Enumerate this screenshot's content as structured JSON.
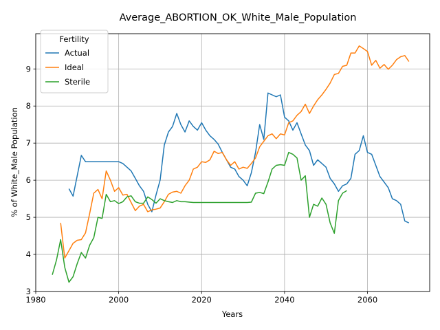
{
  "chart_data": {
    "type": "line",
    "title": "Average_ABORTION_OK_White_Male_Population",
    "xlabel": "Years",
    "ylabel": "% of White_Male Population",
    "xlim": [
      1980,
      2075
    ],
    "ylim": [
      3.0,
      9.95
    ],
    "x_ticks": [
      1980,
      2000,
      2020,
      2040,
      2060
    ],
    "y_ticks": [
      3,
      4,
      5,
      6,
      7,
      8,
      9
    ],
    "grid": true,
    "legend": {
      "title": "Fertility",
      "placement": "top-left"
    },
    "series": [
      {
        "name": "Actual",
        "color": "#1f77b4",
        "x": [
          1988,
          1989,
          1991,
          1992,
          1994,
          1996,
          1998,
          2000,
          2001,
          2003,
          2004,
          2005,
          2006,
          2007,
          2008,
          2009,
          2010,
          2011,
          2012,
          2013,
          2014,
          2015,
          2016,
          2017,
          2018,
          2019,
          2020,
          2021,
          2022,
          2023,
          2024,
          2025,
          2026,
          2027,
          2028,
          2029,
          2030,
          2031,
          2032,
          2033,
          2034,
          2035,
          2036,
          2037,
          2038,
          2039,
          2040,
          2041,
          2042,
          2043,
          2044,
          2045,
          2046,
          2047,
          2048,
          2049,
          2050,
          2051,
          2052,
          2053,
          2054,
          2055,
          2056,
          2057,
          2058,
          2059,
          2060,
          2061,
          2062,
          2063,
          2064,
          2065,
          2066,
          2067,
          2068,
          2069,
          2070
        ],
        "values": [
          5.77,
          5.57,
          6.67,
          6.5,
          6.5,
          6.5,
          6.5,
          6.5,
          6.45,
          6.25,
          6.05,
          5.85,
          5.7,
          5.35,
          5.15,
          5.6,
          6.0,
          6.95,
          7.3,
          7.45,
          7.8,
          7.5,
          7.3,
          7.6,
          7.45,
          7.35,
          7.55,
          7.35,
          7.2,
          7.1,
          6.97,
          6.75,
          6.55,
          6.35,
          6.3,
          6.1,
          6.0,
          5.85,
          6.2,
          6.75,
          7.5,
          7.1,
          8.35,
          8.3,
          8.25,
          8.3,
          7.7,
          7.6,
          7.35,
          7.55,
          7.25,
          6.95,
          6.8,
          6.4,
          6.55,
          6.45,
          6.35,
          6.05,
          5.9,
          5.7,
          5.85,
          5.9,
          6.05,
          6.7,
          6.8,
          7.2,
          6.75,
          6.7,
          6.4,
          6.1,
          5.95,
          5.8,
          5.5,
          5.45,
          5.35,
          4.9,
          4.85
        ]
      },
      {
        "name": "Ideal",
        "color": "#ff7f0e",
        "x": [
          1986,
          1987,
          1988,
          1989,
          1990,
          1991,
          1992,
          1993,
          1994,
          1995,
          1996,
          1997,
          1998,
          1999,
          2000,
          2001,
          2002,
          2003,
          2004,
          2005,
          2006,
          2007,
          2008,
          2009,
          2010,
          2011,
          2012,
          2013,
          2014,
          2015,
          2016,
          2017,
          2018,
          2019,
          2020,
          2021,
          2022,
          2023,
          2024,
          2025,
          2026,
          2027,
          2028,
          2029,
          2030,
          2031,
          2032,
          2033,
          2034,
          2035,
          2036,
          2037,
          2038,
          2039,
          2040,
          2041,
          2042,
          2043,
          2044,
          2045,
          2046,
          2047,
          2048,
          2049,
          2050,
          2051,
          2052,
          2053,
          2054,
          2055,
          2056,
          2057,
          2058,
          2059,
          2060,
          2061,
          2062,
          2063,
          2064,
          2065,
          2066,
          2067,
          2068,
          2069,
          2070
        ],
        "values": [
          4.85,
          3.9,
          4.1,
          4.3,
          4.38,
          4.4,
          4.58,
          5.1,
          5.65,
          5.75,
          5.5,
          6.25,
          6.0,
          5.7,
          5.8,
          5.6,
          5.62,
          5.4,
          5.18,
          5.3,
          5.35,
          5.15,
          5.2,
          5.22,
          5.25,
          5.42,
          5.62,
          5.68,
          5.7,
          5.65,
          5.85,
          6.0,
          6.3,
          6.35,
          6.5,
          6.48,
          6.55,
          6.78,
          6.72,
          6.75,
          6.55,
          6.4,
          6.5,
          6.3,
          6.35,
          6.32,
          6.45,
          6.6,
          6.9,
          7.05,
          7.2,
          7.25,
          7.12,
          7.25,
          7.22,
          7.55,
          7.6,
          7.75,
          7.85,
          8.05,
          7.8,
          8.0,
          8.17,
          8.3,
          8.45,
          8.62,
          8.85,
          8.88,
          9.07,
          9.1,
          9.43,
          9.43,
          9.62,
          9.55,
          9.47,
          9.1,
          9.23,
          9.02,
          9.12,
          8.99,
          9.1,
          9.25,
          9.33,
          9.36,
          9.2
        ]
      },
      {
        "name": "Sterile",
        "color": "#2ca02c",
        "x": [
          1984,
          1985,
          1986,
          1987,
          1988,
          1989,
          1990,
          1991,
          1992,
          1993,
          1994,
          1995,
          1996,
          1997,
          1998,
          1999,
          2000,
          2001,
          2002,
          2003,
          2004,
          2005,
          2006,
          2007,
          2008,
          2009,
          2010,
          2011,
          2012,
          2013,
          2014,
          2015,
          2016,
          2017,
          2018,
          2019,
          2020,
          2021,
          2022,
          2023,
          2024,
          2025,
          2026,
          2027,
          2028,
          2029,
          2030,
          2031,
          2032,
          2033,
          2034,
          2035,
          2036,
          2037,
          2038,
          2039,
          2040,
          2041,
          2042,
          2043,
          2044,
          2045,
          2046,
          2047,
          2048,
          2049,
          2050,
          2051,
          2052,
          2053,
          2054,
          2055
        ],
        "values": [
          3.45,
          3.85,
          4.4,
          3.65,
          3.25,
          3.4,
          3.75,
          4.05,
          3.9,
          4.25,
          4.45,
          5.0,
          4.97,
          5.62,
          5.42,
          5.45,
          5.37,
          5.42,
          5.55,
          5.58,
          5.42,
          5.38,
          5.38,
          5.55,
          5.48,
          5.38,
          5.5,
          5.45,
          5.42,
          5.4,
          5.45,
          5.42,
          5.42,
          5.41,
          5.4,
          5.4,
          5.4,
          5.4,
          5.4,
          5.4,
          5.4,
          5.4,
          5.4,
          5.4,
          5.4,
          5.4,
          5.4,
          5.4,
          5.41,
          5.65,
          5.67,
          5.64,
          5.95,
          6.3,
          6.4,
          6.42,
          6.4,
          6.75,
          6.7,
          6.6,
          6.0,
          6.12,
          5.0,
          5.35,
          5.3,
          5.52,
          5.35,
          4.85,
          4.57,
          5.45,
          5.65,
          5.72
        ]
      }
    ]
  }
}
